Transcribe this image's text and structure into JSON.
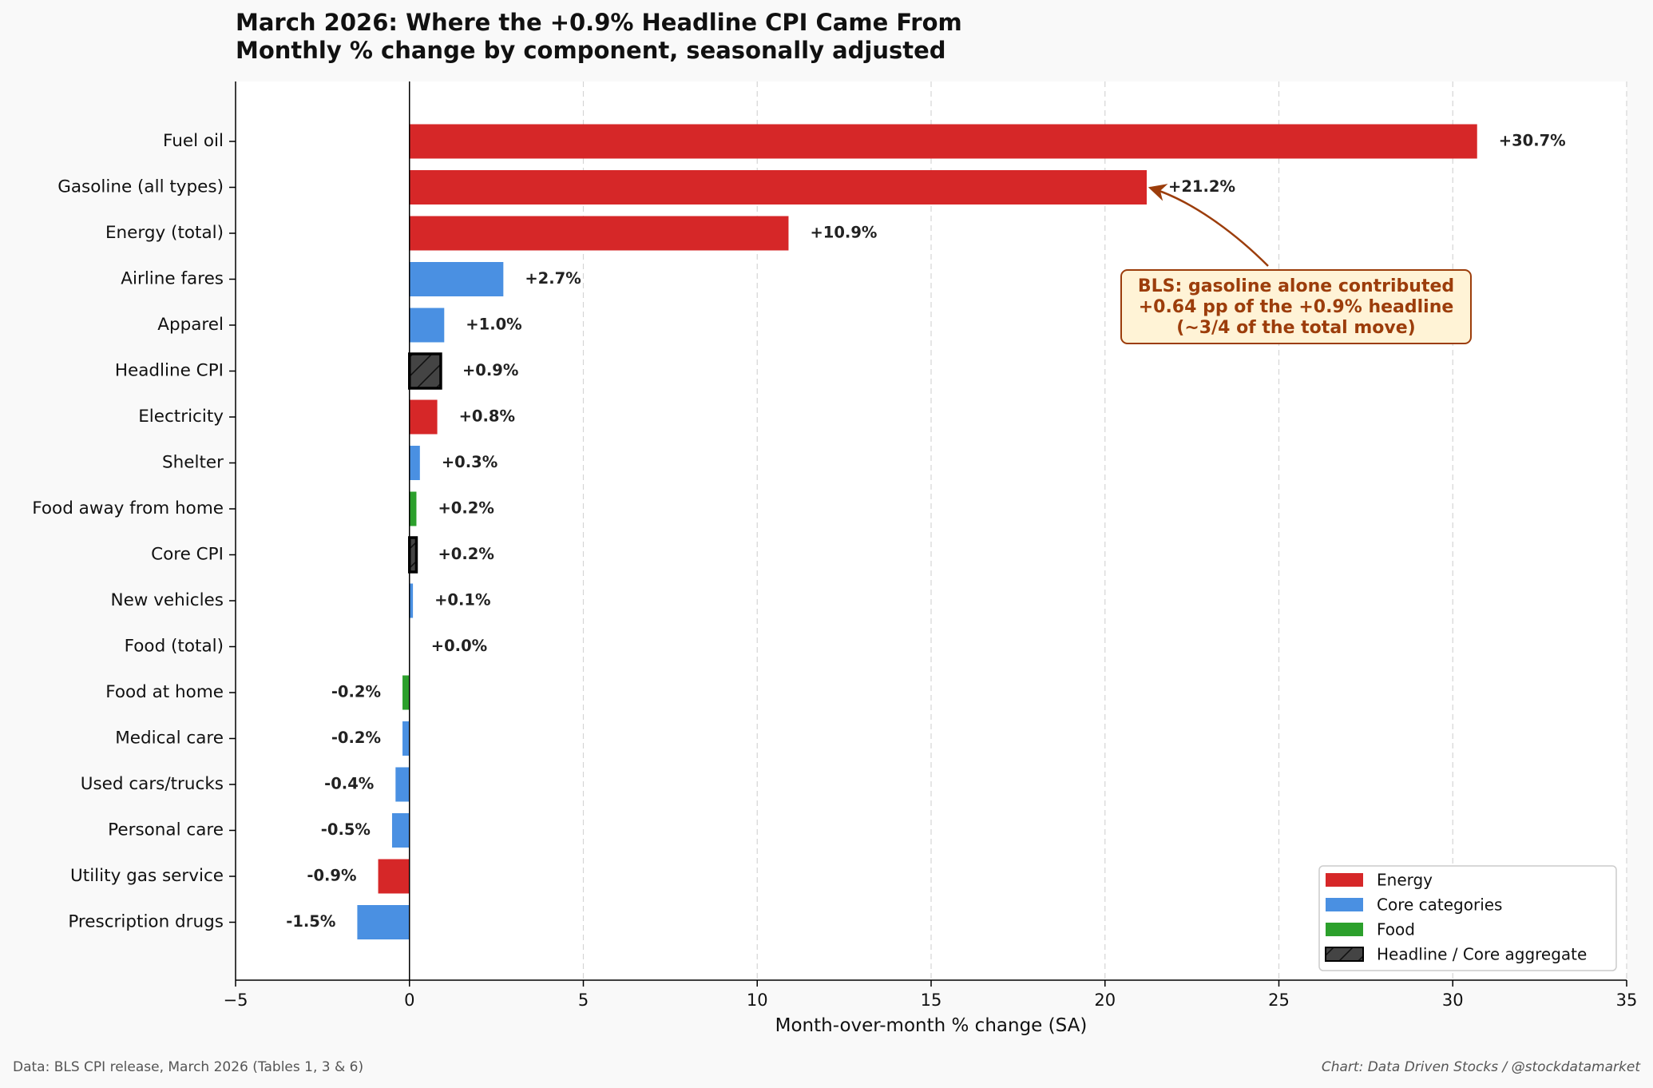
{
  "chart_data": {
    "type": "bar",
    "orientation": "horizontal",
    "title": "March 2026: Where the +0.9% Headline CPI Came From",
    "subtitle": "Monthly % change by component, seasonally adjusted",
    "xlabel": "Month-over-month % change (SA)",
    "ylabel": "",
    "xlim": [
      -5,
      35
    ],
    "xticks": [
      -5,
      0,
      5,
      10,
      15,
      20,
      25,
      30,
      35
    ],
    "xtick_labels": [
      "−5",
      "0",
      "5",
      "10",
      "15",
      "20",
      "25",
      "30",
      "35"
    ],
    "grid": "vertical dashed",
    "categories": [
      "Fuel oil",
      "Gasoline (all types)",
      "Energy (total)",
      "Airline fares",
      "Apparel",
      "Headline CPI",
      "Electricity",
      "Shelter",
      "Food away from home",
      "Core CPI",
      "New vehicles",
      "Food (total)",
      "Food at home",
      "Medical care",
      "Used cars/trucks",
      "Personal care",
      "Utility gas service",
      "Prescription drugs"
    ],
    "values": [
      30.7,
      21.2,
      10.9,
      2.7,
      1.0,
      0.9,
      0.8,
      0.3,
      0.2,
      0.2,
      0.1,
      0.0,
      -0.2,
      -0.2,
      -0.4,
      -0.5,
      -0.9,
      -1.5
    ],
    "data_labels": [
      "+30.7%",
      "+21.2%",
      "+10.9%",
      "+2.7%",
      "+1.0%",
      "+0.9%",
      "+0.8%",
      "+0.3%",
      "+0.2%",
      "+0.2%",
      "+0.1%",
      "+0.0%",
      "-0.2%",
      "-0.2%",
      "-0.4%",
      "-0.5%",
      "-0.9%",
      "-1.5%"
    ],
    "groups": [
      "energy",
      "energy",
      "energy",
      "core",
      "core",
      "aggregate",
      "energy",
      "core",
      "food",
      "aggregate",
      "core",
      "food",
      "food",
      "core",
      "core",
      "core",
      "energy",
      "core"
    ],
    "colors": {
      "energy": "#d62728",
      "core": "#4a90e2",
      "food": "#2ca02c",
      "aggregate": "#444444",
      "annotation": "#9c3d0b",
      "annotation_fill": "#fff3d6"
    },
    "legend": {
      "position": "bottom-right",
      "entries": [
        {
          "label": "Energy",
          "group": "energy"
        },
        {
          "label": "Core categories",
          "group": "core"
        },
        {
          "label": "Food",
          "group": "food"
        },
        {
          "label": "Headline / Core aggregate",
          "group": "aggregate"
        }
      ]
    },
    "annotation": {
      "target_category": "Gasoline (all types)",
      "lines": [
        "BLS: gasoline alone contributed",
        "+0.64 pp of the +0.9% headline",
        "(~3/4 of the total move)"
      ]
    }
  },
  "footer": {
    "source": "Data: BLS CPI release, March 2026 (Tables 1, 3 & 6)",
    "credit": "Chart: Data Driven Stocks / @stockdatamarket"
  }
}
